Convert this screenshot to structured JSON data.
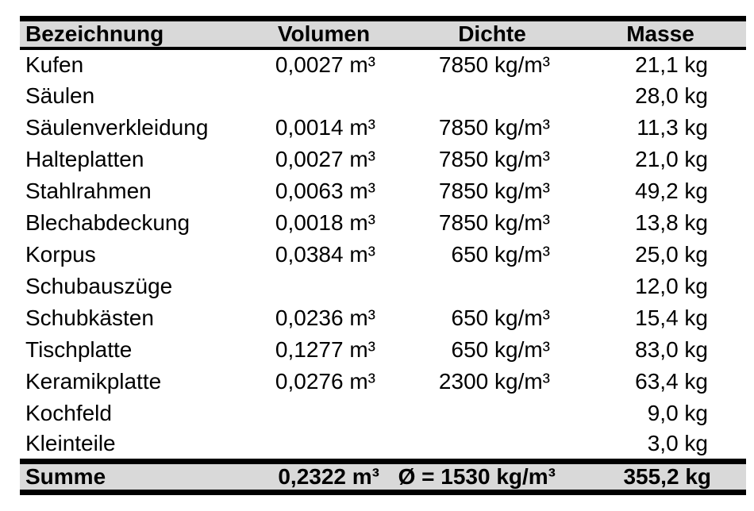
{
  "table": {
    "columns": [
      {
        "key": "bezeichnung",
        "label": "Bezeichnung"
      },
      {
        "key": "volumen",
        "label": "Volumen"
      },
      {
        "key": "dichte",
        "label": "Dichte"
      },
      {
        "key": "masse",
        "label": "Masse"
      }
    ],
    "rows": [
      {
        "bezeichnung": "Kufen",
        "volumen": "0,0027 m³",
        "dichte": "7850 kg/m³",
        "masse": "21,1 kg"
      },
      {
        "bezeichnung": "Säulen",
        "volumen": "",
        "dichte": "",
        "masse": "28,0 kg"
      },
      {
        "bezeichnung": "Säulenverkleidung",
        "volumen": "0,0014 m³",
        "dichte": "7850 kg/m³",
        "masse": "11,3 kg"
      },
      {
        "bezeichnung": "Halteplatten",
        "volumen": "0,0027 m³",
        "dichte": "7850 kg/m³",
        "masse": "21,0 kg"
      },
      {
        "bezeichnung": "Stahlrahmen",
        "volumen": "0,0063 m³",
        "dichte": "7850 kg/m³",
        "masse": "49,2 kg"
      },
      {
        "bezeichnung": "Blechabdeckung",
        "volumen": "0,0018 m³",
        "dichte": "7850 kg/m³",
        "masse": "13,8 kg"
      },
      {
        "bezeichnung": "Korpus",
        "volumen": "0,0384 m³",
        "dichte": "650 kg/m³",
        "masse": "25,0 kg"
      },
      {
        "bezeichnung": "Schubauszüge",
        "volumen": "",
        "dichte": "",
        "masse": "12,0 kg"
      },
      {
        "bezeichnung": "Schubkästen",
        "volumen": "0,0236 m³",
        "dichte": "650 kg/m³",
        "masse": "15,4 kg"
      },
      {
        "bezeichnung": "Tischplatte",
        "volumen": "0,1277 m³",
        "dichte": "650 kg/m³",
        "masse": "83,0 kg"
      },
      {
        "bezeichnung": "Keramikplatte",
        "volumen": "0,0276 m³",
        "dichte": "2300 kg/m³",
        "masse": "63,4 kg"
      },
      {
        "bezeichnung": "Kochfeld",
        "volumen": "",
        "dichte": "",
        "masse": "9,0 kg"
      },
      {
        "bezeichnung": "Kleinteile",
        "volumen": "",
        "dichte": "",
        "masse": "3,0 kg"
      }
    ],
    "footer": {
      "bezeichnung": "Summe",
      "volumen": "0,2322 m³",
      "dichte": "Ø = 1530 kg/m³",
      "masse": "355,2 kg"
    },
    "colors": {
      "header_bg": "#d9d9d9",
      "border": "#000000",
      "text": "#000000",
      "background": "#ffffff"
    }
  }
}
